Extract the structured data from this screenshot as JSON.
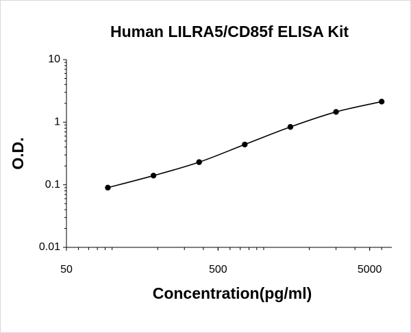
{
  "chart_data": {
    "type": "scatter",
    "title": "Human LILRA5/CD85f ELISA Kit",
    "x_label": "Concentration(pg/ml)",
    "y_label": "O.D.",
    "x_scale": "log",
    "y_scale": "log",
    "xlim": [
      50,
      7000
    ],
    "xticks": [
      50,
      500,
      5000
    ],
    "ylim": [
      0.01,
      10
    ],
    "yticks": [
      0.01,
      0.1,
      1,
      10
    ],
    "x": [
      93.75,
      187.5,
      375,
      750,
      1500,
      3000,
      6000
    ],
    "series": [
      {
        "color": "#000000",
        "values": [
          0.09,
          0.14,
          0.23,
          0.44,
          0.84,
          1.46,
          2.13
        ]
      }
    ]
  }
}
